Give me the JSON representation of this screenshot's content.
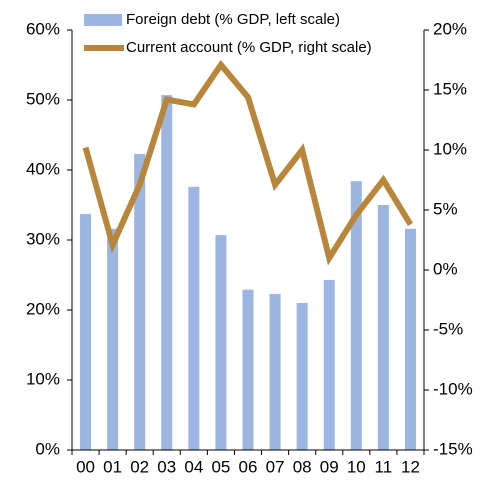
{
  "chart_data": {
    "type": "bar-line",
    "categories": [
      "00",
      "01",
      "02",
      "03",
      "04",
      "05",
      "06",
      "07",
      "08",
      "09",
      "10",
      "11",
      "12"
    ],
    "series": [
      {
        "name": "Foreign debt (% GDP, left scale)",
        "type": "bar",
        "color": "#9db5e1",
        "values": [
          33.7,
          31.6,
          42.3,
          50.7,
          37.6,
          30.7,
          22.9,
          22.3,
          21.0,
          24.3,
          38.4,
          35.0,
          31.6
        ]
      },
      {
        "name": "Current account (% GDP, right scale)",
        "type": "line",
        "axis": "y2",
        "color": "#b8863b",
        "values": [
          10.2,
          2.1,
          7.1,
          14.2,
          13.8,
          17.1,
          14.4,
          7.1,
          10.0,
          1.0,
          4.6,
          7.5,
          3.8
        ]
      }
    ],
    "ylim": [
      0,
      60
    ],
    "yticks": [
      {
        "value": 0,
        "label": "0%"
      },
      {
        "value": 10,
        "label": "10%"
      },
      {
        "value": 20,
        "label": "20%"
      },
      {
        "value": 30,
        "label": "30%"
      },
      {
        "value": 40,
        "label": "40%"
      },
      {
        "value": 50,
        "label": "50%"
      },
      {
        "value": 60,
        "label": "60%"
      }
    ],
    "y2lim": [
      -15,
      20
    ],
    "y2ticks": [
      {
        "value": -15,
        "label": "-15%"
      },
      {
        "value": -10,
        "label": "-10%"
      },
      {
        "value": -5,
        "label": "-5%"
      },
      {
        "value": 0,
        "label": "0%"
      },
      {
        "value": 5,
        "label": "5%"
      },
      {
        "value": 10,
        "label": "10%"
      },
      {
        "value": 15,
        "label": "15%"
      },
      {
        "value": 20,
        "label": "20%"
      }
    ],
    "grid": false,
    "legend": "top"
  }
}
